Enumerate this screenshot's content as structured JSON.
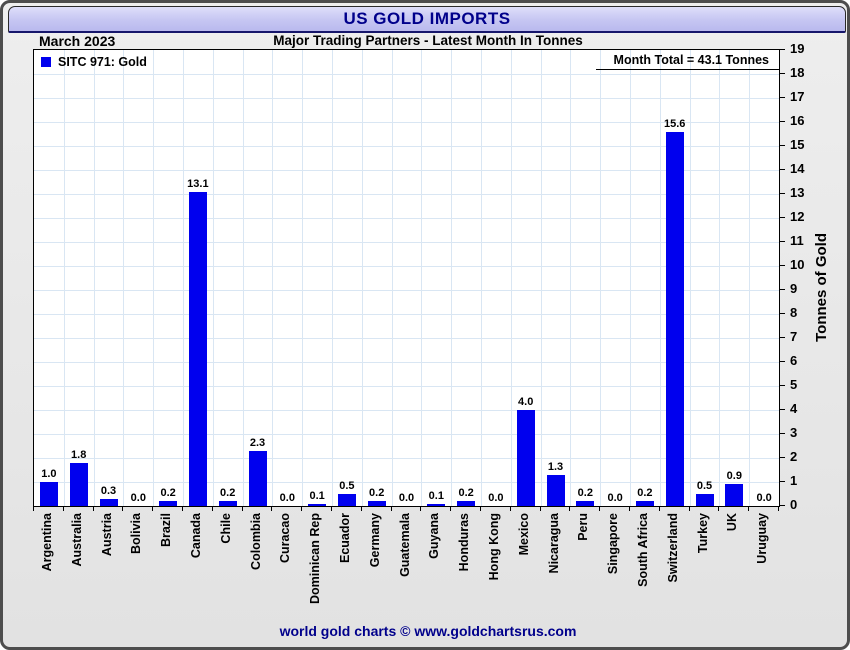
{
  "window": {
    "title": "US GOLD IMPORTS",
    "footer": "world gold charts © www.goldchartsrus.com"
  },
  "header": {
    "period": "March 2023",
    "subtitle": "Major Trading Partners - Latest Month In Tonnes",
    "month_total": "Month Total = 43.1 Tonnes"
  },
  "legend": {
    "label": "SITC 971: Gold",
    "marker": "blue-square-icon",
    "marker_color": "#0000ee"
  },
  "colors": {
    "bar": "#0000ee",
    "gridline": "#d9e6f3",
    "banner_text": "#00008b",
    "footer_text": "#00008b",
    "plot_background": "#ffffff"
  },
  "chart_data": {
    "type": "bar",
    "title": "US GOLD IMPORTS",
    "subtitle": "Major Trading Partners - Latest Month In Tonnes",
    "period": "March 2023",
    "series_label": "SITC 971: Gold",
    "categories": [
      "Argentina",
      "Australia",
      "Austria",
      "Bolivia",
      "Brazil",
      "Canada",
      "Chile",
      "Colombia",
      "Curacao",
      "Dominican Rep",
      "Ecuador",
      "Germany",
      "Guatemala",
      "Guyana",
      "Honduras",
      "Hong Kong",
      "Mexico",
      "Nicaragua",
      "Peru",
      "Singapore",
      "South Africa",
      "Switzerland",
      "Turkey",
      "UK",
      "Uruguay"
    ],
    "values": [
      1.0,
      1.8,
      0.3,
      0.0,
      0.2,
      13.1,
      0.2,
      2.3,
      0.0,
      0.1,
      0.5,
      0.2,
      0.0,
      0.1,
      0.2,
      0.0,
      4.0,
      1.3,
      0.2,
      0.0,
      0.2,
      15.6,
      0.5,
      0.9,
      0.0
    ],
    "xlabel": "",
    "ylabel": "Tonnes of Gold",
    "ylim": [
      0,
      19
    ],
    "ytick_step": 1,
    "grid": true,
    "legend_position": "top-left",
    "annotation": "Month Total = 43.1 Tonnes",
    "month_total_tonnes": 43.1
  }
}
